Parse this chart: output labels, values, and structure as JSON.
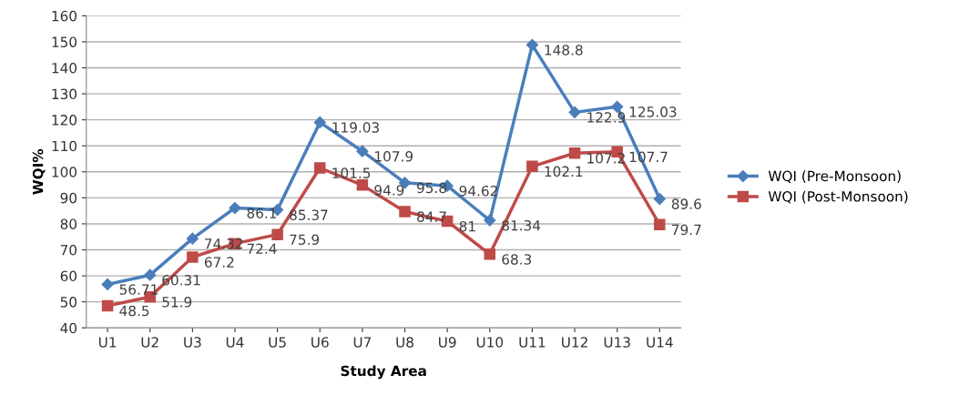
{
  "chart_data": {
    "type": "line",
    "xlabel": "Study Area",
    "ylabel": "WQI%",
    "categories": [
      "U1",
      "U2",
      "U3",
      "U4",
      "U5",
      "U6",
      "U7",
      "U8",
      "U9",
      "U10",
      "U11",
      "U12",
      "U13",
      "U14"
    ],
    "series": [
      {
        "name": "WQI (Pre-Monsoon)",
        "color": "#4a7ebb",
        "marker": "diamond",
        "values": [
          56.71,
          60.31,
          74.32,
          86.1,
          85.37,
          119.03,
          107.9,
          95.8,
          94.62,
          81.34,
          148.8,
          122.9,
          125.03,
          89.6
        ]
      },
      {
        "name": "WQI (Post-Monsoon)",
        "color": "#be4b48",
        "marker": "square",
        "values": [
          48.5,
          51.9,
          67.2,
          72.4,
          75.9,
          101.5,
          94.9,
          84.7,
          81,
          68.3,
          102.1,
          107.2,
          107.7,
          79.7
        ]
      }
    ],
    "ylim": [
      40,
      160
    ],
    "yticks": [
      40,
      50,
      60,
      70,
      80,
      90,
      100,
      110,
      120,
      130,
      140,
      150,
      160
    ],
    "grid": "y",
    "legend": "right",
    "data_labels": true,
    "line_style": "solid"
  }
}
